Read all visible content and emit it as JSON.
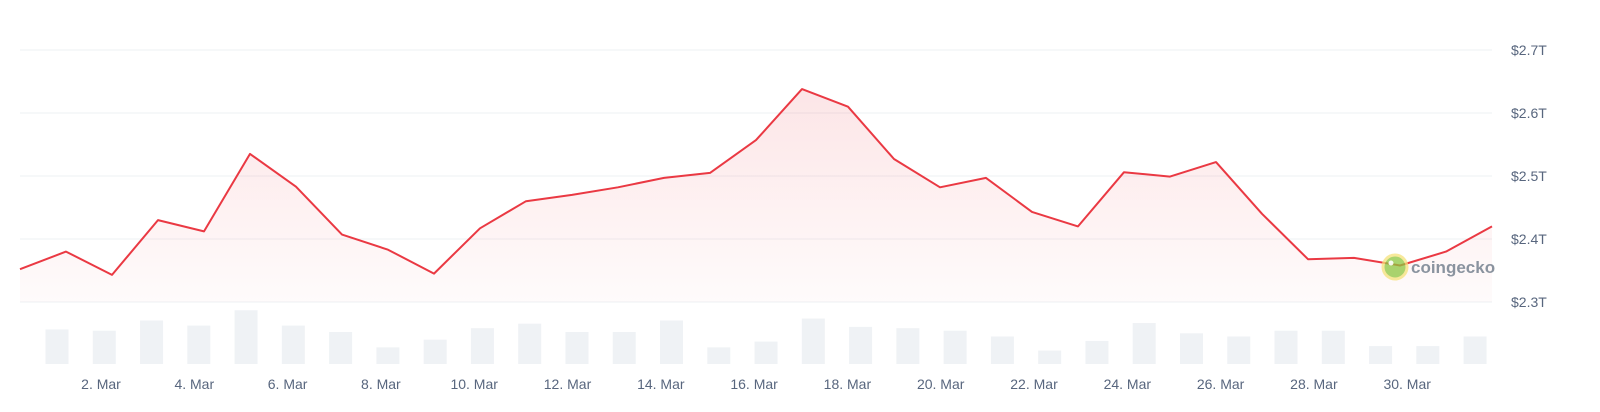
{
  "chart_data": {
    "type": "line",
    "x_tick_labels": [
      "2. Mar",
      "4. Mar",
      "6. Mar",
      "8. Mar",
      "10. Mar",
      "12. Mar",
      "14. Mar",
      "16. Mar",
      "18. Mar",
      "20. Mar",
      "22. Mar",
      "24. Mar",
      "26. Mar",
      "28. Mar",
      "30. Mar"
    ],
    "y_tick_labels": [
      "$2.7T",
      "$2.6T",
      "$2.5T",
      "$2.4T",
      "$2.3T"
    ],
    "y_ticks": [
      2.7,
      2.6,
      2.5,
      2.4,
      2.3
    ],
    "ylim": [
      2.3,
      2.7
    ],
    "series": [
      {
        "values": [
          2.352,
          2.38,
          2.343,
          2.43,
          2.412,
          2.535,
          2.483,
          2.407,
          2.383,
          2.345,
          2.417,
          2.46,
          2.47,
          2.482,
          2.497,
          2.505,
          2.557,
          2.638,
          2.61,
          2.527,
          2.482,
          2.497,
          2.443,
          2.42,
          2.506,
          2.499,
          2.522,
          2.44,
          2.368,
          2.37,
          2.358,
          2.38,
          2.42
        ],
        "color": "#ea3943"
      }
    ],
    "volume": [
      0.54,
      0.52,
      0.68,
      0.6,
      0.84,
      0.6,
      0.5,
      0.26,
      0.38,
      0.56,
      0.63,
      0.5,
      0.5,
      0.68,
      0.26,
      0.35,
      0.71,
      0.58,
      0.56,
      0.52,
      0.43,
      0.21,
      0.36,
      0.64,
      0.48,
      0.43,
      0.52,
      0.52,
      0.28,
      0.28,
      0.43
    ],
    "grid": true
  },
  "watermark": {
    "brand": "coingecko"
  }
}
